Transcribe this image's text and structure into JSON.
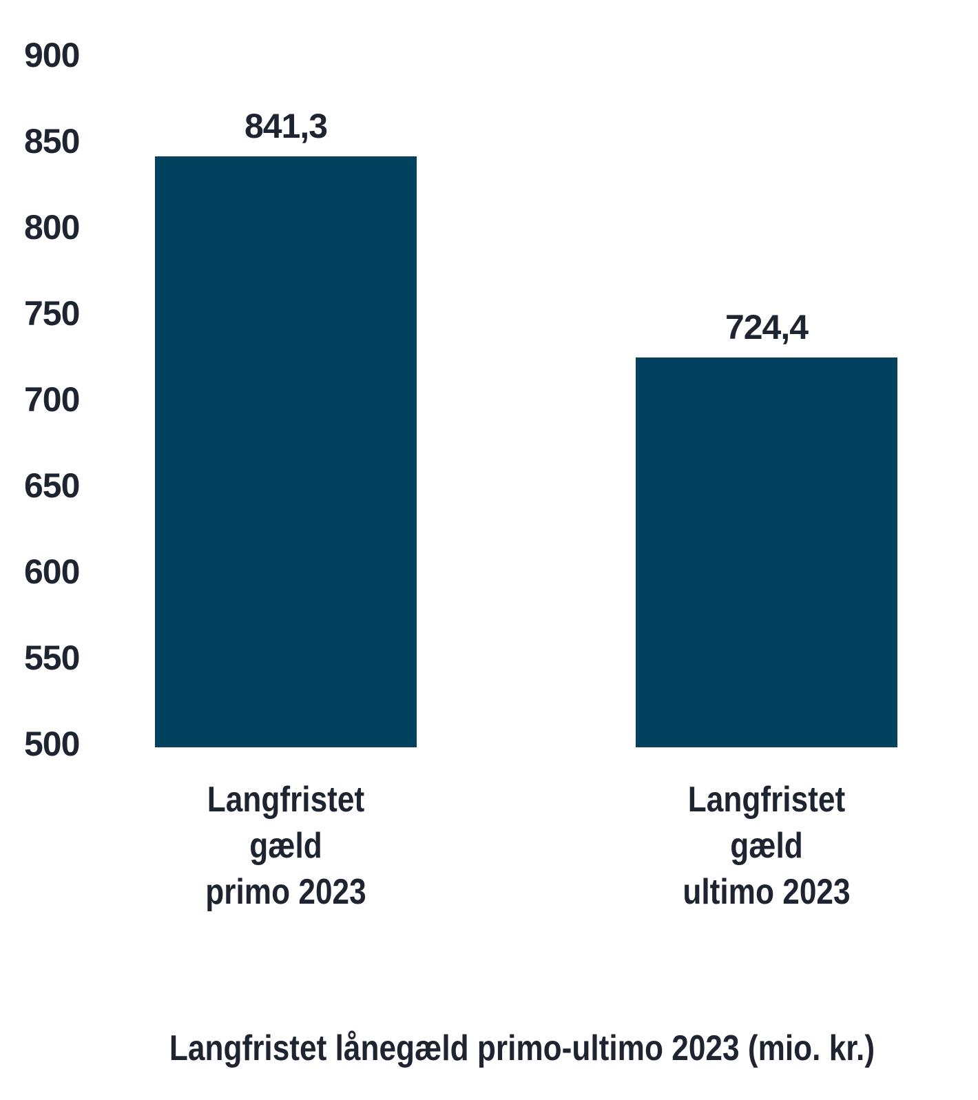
{
  "chart_data": {
    "type": "bar",
    "categories": [
      "Langfristet gæld primo 2023",
      "Langfristet gæld ultimo 2023"
    ],
    "category_lines": [
      [
        "Langfristet",
        "gæld",
        "primo 2023"
      ],
      [
        "Langfristet",
        "gæld",
        "ultimo 2023"
      ]
    ],
    "values": [
      841.3,
      724.4
    ],
    "value_labels": [
      "841,3",
      "724,4"
    ],
    "title": "Langfristet lånegæld primo-ultimo 2023 (mio. kr.)",
    "xlabel": "",
    "ylabel": "",
    "ylim": [
      500,
      900
    ],
    "ytick_step": 50,
    "yticks": [
      900,
      850,
      800,
      750,
      700,
      650,
      600,
      550,
      500
    ],
    "grid": false,
    "legend": false,
    "bar_color": "#03425f",
    "text_color": "#1e2430",
    "background": "#ffffff"
  }
}
